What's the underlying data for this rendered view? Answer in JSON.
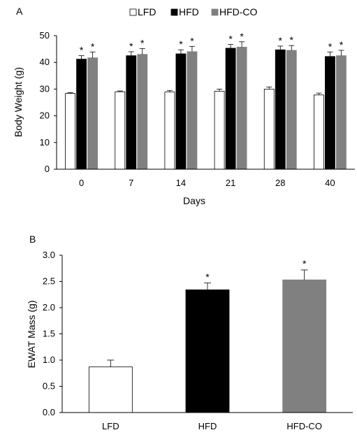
{
  "chart_data": [
    {
      "panel_label": "A",
      "type": "bar",
      "xlabel": "Days",
      "ylabel": "Body Weight (g)",
      "ylim": [
        0,
        50
      ],
      "yticks": [
        0,
        10,
        20,
        30,
        40,
        50
      ],
      "categories": [
        "0",
        "7",
        "14",
        "21",
        "28",
        "40"
      ],
      "legend_position": "top",
      "grid": false,
      "series": [
        {
          "name": "LFD",
          "color": "#ffffff",
          "values": [
            28.4,
            29.0,
            28.9,
            29.2,
            30.0,
            27.8
          ],
          "errors": [
            0.3,
            0.3,
            0.6,
            0.8,
            0.8,
            0.7
          ],
          "stars": [
            false,
            false,
            false,
            false,
            false,
            false
          ]
        },
        {
          "name": "HFD",
          "color": "#000000",
          "values": [
            41.2,
            42.5,
            43.2,
            45.3,
            44.7,
            42.2
          ],
          "errors": [
            1.3,
            1.5,
            1.5,
            1.4,
            1.4,
            1.7
          ],
          "stars": [
            true,
            true,
            true,
            true,
            true,
            true
          ]
        },
        {
          "name": "HFD-CO",
          "color": "#808080",
          "values": [
            41.7,
            43.0,
            44.0,
            45.7,
            44.5,
            42.5
          ],
          "errors": [
            2.2,
            2.2,
            2.0,
            2.0,
            1.8,
            2.0
          ],
          "stars": [
            true,
            true,
            true,
            true,
            true,
            true
          ]
        }
      ],
      "star_symbol": "*"
    },
    {
      "panel_label": "B",
      "type": "bar",
      "xlabel": "",
      "ylabel": "EWAT Mass (g)",
      "ylim": [
        0,
        3.0
      ],
      "yticks": [
        "0.0",
        "0.5",
        "1.0",
        "1.5",
        "2.0",
        "2.5",
        "3.0"
      ],
      "categories": [
        "LFD",
        "HFD",
        "HFD-CO"
      ],
      "colors": [
        "#ffffff",
        "#000000",
        "#808080"
      ],
      "values": [
        0.87,
        2.34,
        2.53
      ],
      "errors": [
        0.13,
        0.13,
        0.19
      ],
      "stars": [
        false,
        true,
        true
      ],
      "star_symbol": "*"
    }
  ]
}
